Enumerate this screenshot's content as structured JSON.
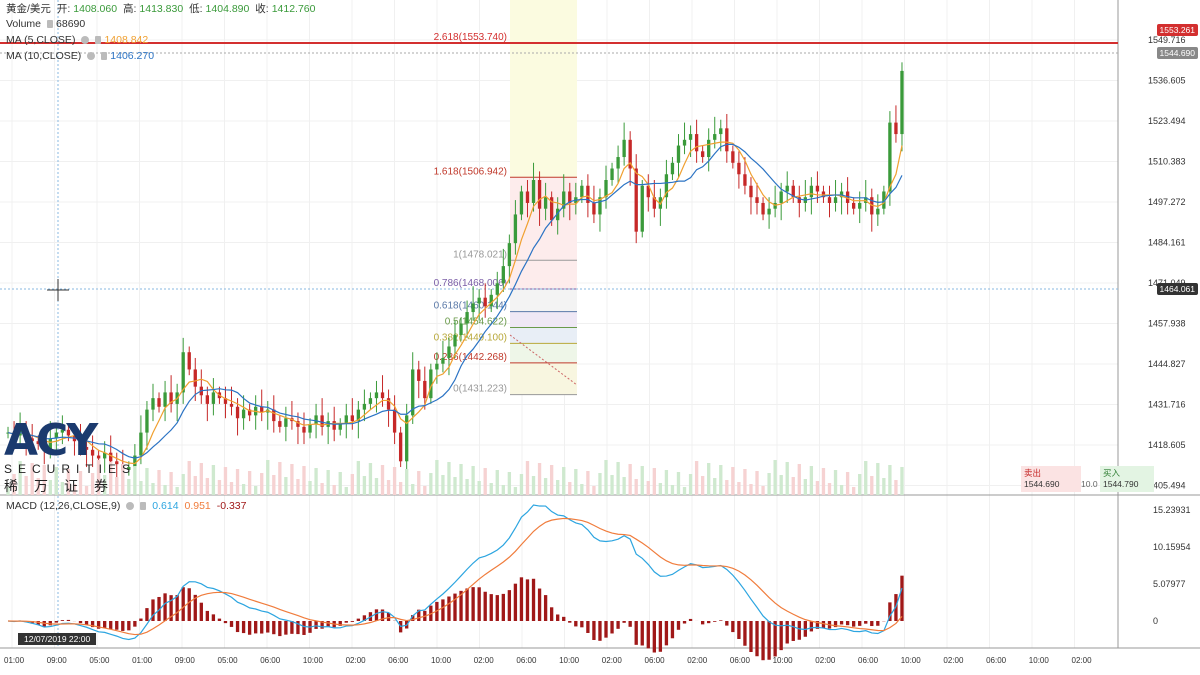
{
  "legend": {
    "symbol": "黄金/美元",
    "open_label": "开:",
    "open": "1408.060",
    "high_label": "高:",
    "high": "1413.830",
    "low_label": "低:",
    "low": "1404.890",
    "close_label": "收:",
    "close": "1412.760",
    "volume_label": "Volume",
    "volume": "68690",
    "ma5_label": "MA (5,CLOSE)",
    "ma5": "1408.842",
    "ma10_label": "MA (10,CLOSE)",
    "ma10": "1406.270",
    "macd_label": "MACD (12,26,CLOSE,9)",
    "macd1": "0.614",
    "macd2": "0.951",
    "macd3": "-0.337"
  },
  "colors": {
    "up": "#26a69a",
    "down": "#ef5350",
    "up_candle": "#3a9a3a",
    "down_candle": "#c62828",
    "ma5": "#f0a030",
    "ma10": "#2b73c4",
    "macd_line": "#2ca5e0",
    "signal_line": "#f07c3c",
    "hist": "#a01818"
  },
  "price_tags": {
    "top": "1553.261",
    "last": "1544.690",
    "cursor": "1464.061"
  },
  "bid_ask": {
    "sell_label": "卖出",
    "sell": "1544.690",
    "spread": "10.0",
    "buy_label": "买入",
    "buy": "1544.790"
  },
  "date_tag": "12/07/2019  22:00",
  "logo": {
    "brand": "ACY",
    "sub": "SECURITIES",
    "cn": "稀万证券"
  },
  "chart_data": {
    "type": "candlestick",
    "y_axis": [
      "1549.716",
      "1536.605",
      "1523.494",
      "1510.383",
      "1497.272",
      "1484.161",
      "1471.049",
      "1457.938",
      "1444.827",
      "1431.716",
      "1418.605",
      "1405.494"
    ],
    "ylim": [
      1398,
      1560
    ],
    "macd_axis": [
      "15.23931",
      "10.15954",
      "5.07977",
      "0"
    ],
    "x_axis": [
      "01:00",
      "09:00",
      "05:00",
      "01:00",
      "09:00",
      "05:00",
      "06:00",
      "10:00",
      "02:00",
      "06:00",
      "10:00",
      "02:00",
      "06:00",
      "10:00",
      "02:00",
      "06:00",
      "02:00",
      "06:00",
      "10:00",
      "02:00",
      "06:00",
      "10:00",
      "02:00",
      "06:00",
      "10:00",
      "02:00"
    ],
    "fibonacci": [
      {
        "label": "2.618(1553.740)",
        "value": 1553.74
      },
      {
        "label": "1.618(1506.942)",
        "value": 1506.942
      },
      {
        "label": "1(1478.021)",
        "value": 1478.021
      },
      {
        "label": "0.786(1468.006)",
        "value": 1468.006
      },
      {
        "label": "0.618(1460.144)",
        "value": 1460.144
      },
      {
        "label": "0.5(1454.622)",
        "value": 1454.622
      },
      {
        "label": "0.382(1449.100)",
        "value": 1449.1
      },
      {
        "label": "0.236(1442.268)",
        "value": 1442.268
      },
      {
        "label": "0(1431.223)",
        "value": 1431.223
      }
    ],
    "close_series": [
      1418,
      1417,
      1419,
      1416,
      1415,
      1414,
      1412,
      1416,
      1418,
      1419,
      1417,
      1415,
      1413,
      1412,
      1410,
      1409,
      1411,
      1408,
      1407,
      1405,
      1406,
      1410,
      1418,
      1426,
      1430,
      1427,
      1432,
      1428,
      1432,
      1446,
      1440,
      1434,
      1431,
      1428,
      1432,
      1430,
      1428,
      1427,
      1423,
      1426,
      1424,
      1427,
      1425,
      1426,
      1422,
      1420,
      1423,
      1422,
      1420,
      1418,
      1421,
      1424,
      1420,
      1422,
      1419,
      1421,
      1424,
      1422,
      1426,
      1428,
      1430,
      1432,
      1430,
      1426,
      1418,
      1408,
      1424,
      1440,
      1436,
      1430,
      1440,
      1442,
      1444,
      1448,
      1452,
      1456,
      1460,
      1463,
      1465,
      1462,
      1466,
      1470,
      1476,
      1484,
      1494,
      1502,
      1498,
      1506,
      1496,
      1500,
      1492,
      1496,
      1502,
      1498,
      1500,
      1504,
      1498,
      1494,
      1500,
      1506,
      1510,
      1514,
      1520,
      1510,
      1488,
      1504,
      1500,
      1496,
      1500,
      1508,
      1512,
      1518,
      1520,
      1522,
      1516,
      1514,
      1520,
      1522,
      1524,
      1516,
      1512,
      1508,
      1504,
      1500,
      1498,
      1494,
      1496,
      1498,
      1502,
      1504,
      1500,
      1498,
      1500,
      1504,
      1502,
      1500,
      1498,
      1500,
      1502,
      1498,
      1496,
      1498,
      1500,
      1494,
      1496,
      1502,
      1526,
      1522,
      1544
    ]
  }
}
